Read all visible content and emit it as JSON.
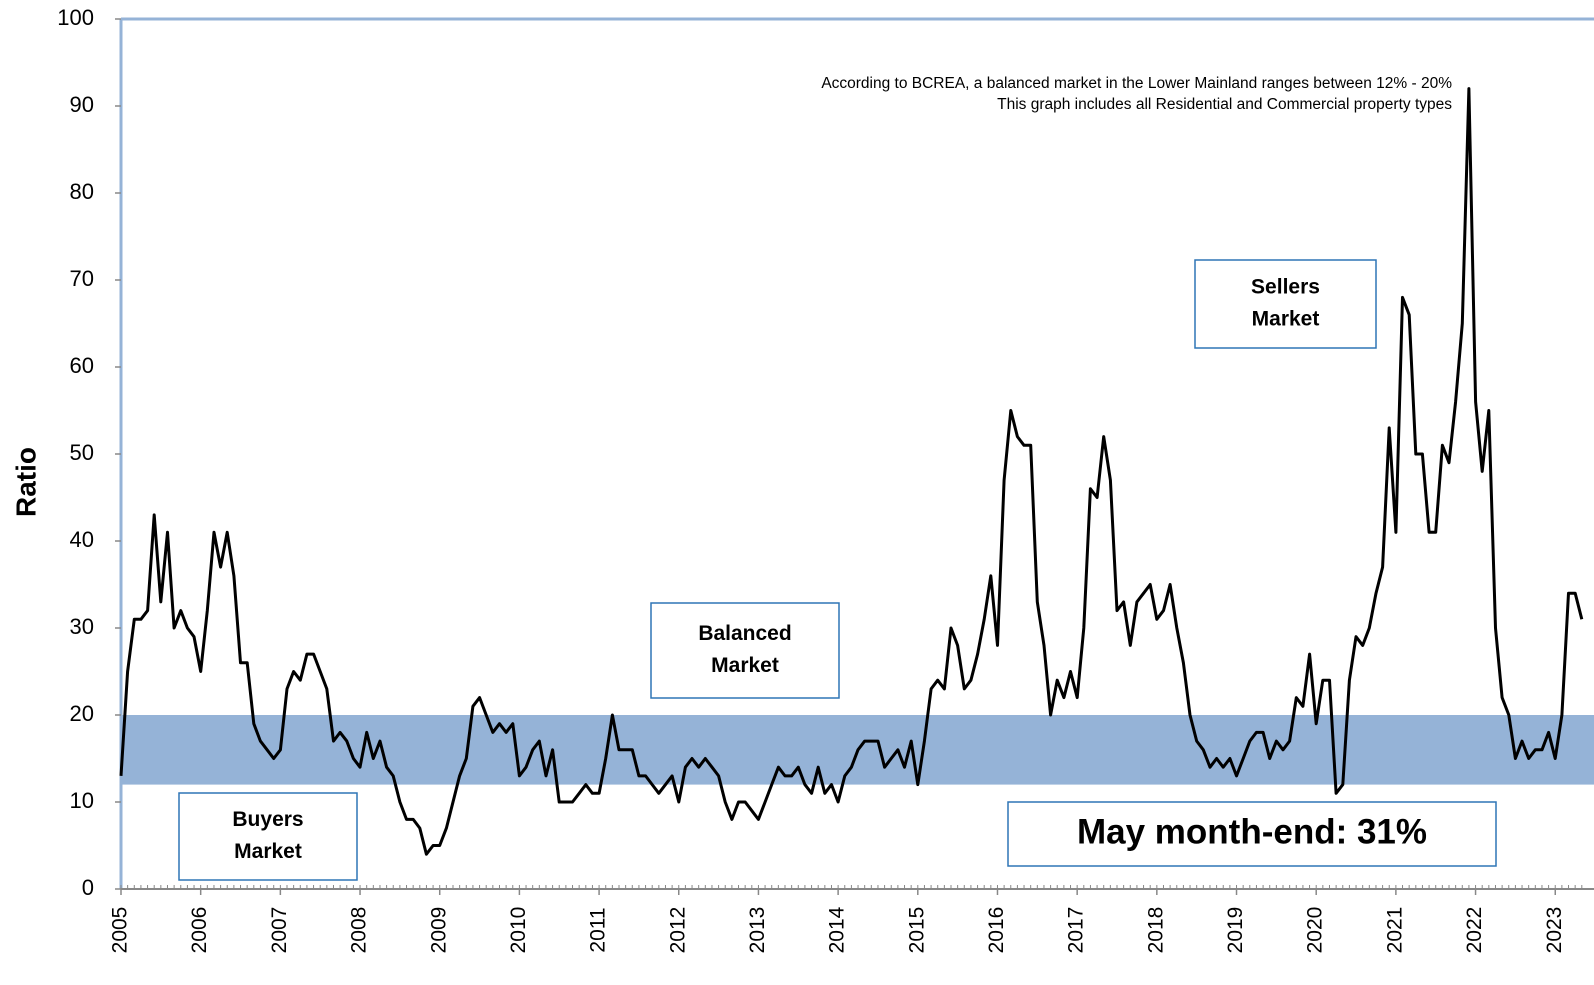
{
  "chart_data": {
    "type": "line",
    "y_label": "Ratio",
    "categories": [
      "2005",
      null,
      null,
      null,
      null,
      null,
      null,
      null,
      null,
      null,
      null,
      null,
      "2006",
      null,
      null,
      null,
      null,
      null,
      null,
      null,
      null,
      null,
      null,
      null,
      "2007",
      null,
      null,
      null,
      null,
      null,
      null,
      null,
      null,
      null,
      null,
      null,
      "2008",
      null,
      null,
      null,
      null,
      null,
      null,
      null,
      null,
      null,
      null,
      null,
      "2009",
      null,
      null,
      null,
      null,
      null,
      null,
      null,
      null,
      null,
      null,
      null,
      "2010",
      null,
      null,
      null,
      null,
      null,
      null,
      null,
      null,
      null,
      null,
      null,
      "2011",
      null,
      null,
      null,
      null,
      null,
      null,
      null,
      null,
      null,
      null,
      null,
      "2012",
      null,
      null,
      null,
      null,
      null,
      null,
      null,
      null,
      null,
      null,
      null,
      "2013",
      null,
      null,
      null,
      null,
      null,
      null,
      null,
      null,
      null,
      null,
      null,
      "2014",
      null,
      null,
      null,
      null,
      null,
      null,
      null,
      null,
      null,
      null,
      null,
      "2015",
      null,
      null,
      null,
      null,
      null,
      null,
      null,
      null,
      null,
      null,
      null,
      "2016",
      null,
      null,
      null,
      null,
      null,
      null,
      null,
      null,
      null,
      null,
      null,
      "2017",
      null,
      null,
      null,
      null,
      null,
      null,
      null,
      null,
      null,
      null,
      null,
      "2018",
      null,
      null,
      null,
      null,
      null,
      null,
      null,
      null,
      null,
      null,
      null,
      "2019",
      null,
      null,
      null,
      null,
      null,
      null,
      null,
      null,
      null,
      null,
      null,
      "2020",
      null,
      null,
      null,
      null,
      null,
      null,
      null,
      null,
      null,
      null,
      null,
      "2021",
      null,
      null,
      null,
      null,
      null,
      null,
      null,
      null,
      null,
      null,
      null,
      "2022",
      null,
      null,
      null,
      null,
      null,
      null,
      null,
      null,
      null,
      null,
      null,
      "2023",
      null,
      null,
      null,
      null
    ],
    "values": [
      13,
      25,
      31,
      31,
      32,
      43,
      33,
      41,
      30,
      32,
      30,
      29,
      25,
      32,
      41,
      37,
      41,
      36,
      26,
      26,
      19,
      17,
      16,
      15,
      16,
      23,
      25,
      24,
      27,
      27,
      25,
      23,
      17,
      18,
      17,
      15,
      14,
      18,
      15,
      17,
      14,
      13,
      10,
      8,
      8,
      7,
      4,
      5,
      5,
      7,
      10,
      13,
      15,
      21,
      22,
      20,
      18,
      19,
      18,
      19,
      13,
      14,
      16,
      17,
      13,
      16,
      10,
      10,
      10,
      11,
      12,
      11,
      11,
      15,
      20,
      16,
      16,
      16,
      13,
      13,
      12,
      11,
      12,
      13,
      10,
      14,
      15,
      14,
      15,
      14,
      13,
      10,
      8,
      10,
      10,
      9,
      8,
      10,
      12,
      14,
      13,
      13,
      14,
      12,
      11,
      14,
      11,
      12,
      10,
      13,
      14,
      16,
      17,
      17,
      17,
      14,
      15,
      16,
      14,
      17,
      12,
      17,
      23,
      24,
      23,
      30,
      28,
      23,
      24,
      27,
      31,
      36,
      28,
      47,
      55,
      52,
      51,
      51,
      33,
      28,
      20,
      24,
      22,
      25,
      22,
      30,
      46,
      45,
      52,
      47,
      32,
      33,
      28,
      33,
      34,
      35,
      31,
      32,
      35,
      30,
      26,
      20,
      17,
      16,
      14,
      15,
      14,
      15,
      13,
      15,
      17,
      18,
      18,
      15,
      17,
      16,
      17,
      22,
      21,
      27,
      19,
      24,
      24,
      11,
      12,
      24,
      29,
      28,
      30,
      34,
      37,
      53,
      41,
      68,
      66,
      50,
      50,
      41,
      41,
      51,
      49,
      56,
      65,
      92,
      56,
      48,
      55,
      30,
      22,
      20,
      15,
      17,
      15,
      16,
      16,
      18,
      15,
      20,
      34,
      34,
      31
    ],
    "color": "#000000",
    "band": [
      12,
      20
    ],
    "band_color": "#95b3d7",
    "ylim": [
      0,
      100
    ],
    "yticks": [
      0,
      10,
      20,
      30,
      40,
      50,
      60,
      70,
      80,
      90,
      100
    ],
    "notes": [
      "According to BCREA, a balanced market in the Lower Mainland ranges between 12% - 20%",
      "This graph includes all Residential and Commercial property types"
    ],
    "annotations": [
      {
        "lines": [
          "Buyers",
          "Market"
        ]
      },
      {
        "lines": [
          "Balanced",
          "Market"
        ]
      },
      {
        "lines": [
          "Sellers",
          "Market"
        ]
      },
      {
        "lines": [
          "May month-end: 31%"
        ]
      }
    ]
  }
}
